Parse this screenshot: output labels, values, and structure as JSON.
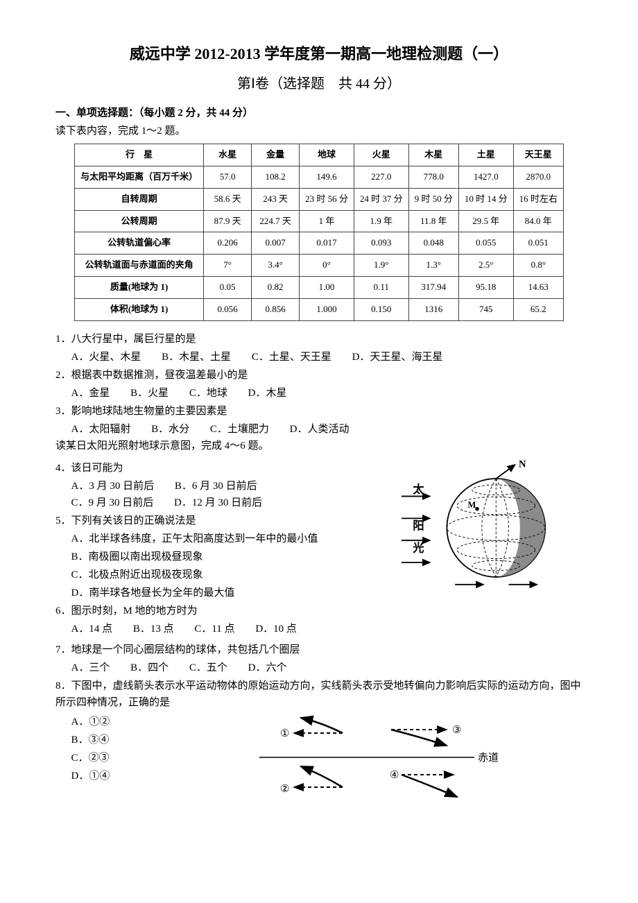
{
  "header": {
    "title": "威远中学 2012-2013 学年度第一期高一地理检测题（一）",
    "subtitle": "第Ⅰ卷（选择题　共 44 分）",
    "section": "一、单项选择题：（每小题 2 分，共 44 分）",
    "table_intro": "读下表内容，完成 1～2 题。"
  },
  "planet_table": {
    "columns": [
      "行　星",
      "水星",
      "金量",
      "地球",
      "火星",
      "木星",
      "土星",
      "天王星"
    ],
    "rows": [
      [
        "与太阳平均距离（百万千米）",
        "57.0",
        "108.2",
        "149.6",
        "227.0",
        "778.0",
        "1427.0",
        "2870.0"
      ],
      [
        "自转周期",
        "58.6 天",
        "243 天",
        "23 时 56 分",
        "24 时 37 分",
        "9 时 50 分",
        "10 时 14 分",
        "16 时左右"
      ],
      [
        "公转周期",
        "87.9 天",
        "224.7 天",
        "1 年",
        "1.9 年",
        "11.8 年",
        "29.5 年",
        "84.0 年"
      ],
      [
        "公转轨道偏心率",
        "0.206",
        "0.007",
        "0.017",
        "0.093",
        "0.048",
        "0.055",
        "0.051"
      ],
      [
        "公转轨道面与赤道面的夹角",
        "7°",
        "3.4°",
        "0°",
        "1.9°",
        "1.3°",
        "2.5°",
        "0.8°"
      ],
      [
        "质量(地球为 1)",
        "0.05",
        "0.82",
        "1.00",
        "0.11",
        "317.94",
        "95.18",
        "14.63"
      ],
      [
        "体积(地球为 1)",
        "0.056",
        "0.856",
        "1.000",
        "0.150",
        "1316",
        "745",
        "65.2"
      ]
    ],
    "border_color": "#444444",
    "font_size": 13
  },
  "questions": {
    "q1": {
      "stem": "1．八大行星中，属巨行星的是",
      "opts": {
        "A": "A．火星、木星",
        "B": "B．木星、土星",
        "C": "C．土星、天王星",
        "D": "D．天王星、海王星"
      }
    },
    "q2": {
      "stem": "2．根据表中数据推测，昼夜温差最小的是",
      "opts": {
        "A": "A．金星",
        "B": "B．火星",
        "C": "C．地球",
        "D": "D．木星"
      }
    },
    "q3": {
      "stem": "3．影响地球陆地生物量的主要因素是",
      "opts": {
        "A": "A．太阳辐射",
        "B": "B．水分",
        "C": "C．土壤肥力",
        "D": "D．人类活动"
      }
    },
    "fig_intro": "读某日太阳光照射地球示意图，完成 4～6 题。",
    "q4": {
      "stem": "4．该日可能为",
      "opts": {
        "A": "A．3 月 30 日前后",
        "B": "B．6 月 30 日前后",
        "C": "C．9 月 30 日前后",
        "D": "D．12 月 30 日前后"
      }
    },
    "q5": {
      "stem": "5．下列有关该日的正确说法是",
      "opts": {
        "A": "A．北半球各纬度，正午太阳高度达到一年中的最小值",
        "B": "B．南极圈以南出现极昼现象",
        "C": "C．北极点附近出现极夜现象",
        "D": "D．南半球各地昼长为全年的最大值"
      }
    },
    "q6": {
      "stem": "6．图示时刻，M 地的地方时为",
      "opts": {
        "A": "A．14 点",
        "B": "B．13 点",
        "C": "C．11 点",
        "D": "D．10 点"
      }
    },
    "q7": {
      "stem": "7．地球是一个同心圈层结构的球体，共包括几个圈层",
      "opts": {
        "A": "A．三个",
        "B": "B．四个",
        "C": "C．五个",
        "D": "D．六个"
      }
    },
    "q8": {
      "stem": "8．下图中，虚线箭头表示水平运动物体的原始运动方向，实线箭头表示受地转偏向力影响后实际的运动方向，图中所示四种情况，正确的是",
      "opts": {
        "A": "A．①②",
        "B": "B．③④",
        "C": "C．②③",
        "D": "D．①④"
      }
    }
  },
  "globe_diagram": {
    "labels": {
      "sun": "太",
      "sun2": "阳",
      "sun3": "光",
      "N": "N",
      "M": "M"
    },
    "colors": {
      "outline": "#000000",
      "shade": "#666666",
      "arrow": "#000000",
      "background": "#ffffff"
    }
  },
  "coriolis_diagram": {
    "labels": {
      "c1": "①",
      "c2": "②",
      "c3": "③",
      "c4": "④",
      "equator": "赤道"
    },
    "colors": {
      "dashed": "#000000",
      "solid": "#000000"
    }
  }
}
